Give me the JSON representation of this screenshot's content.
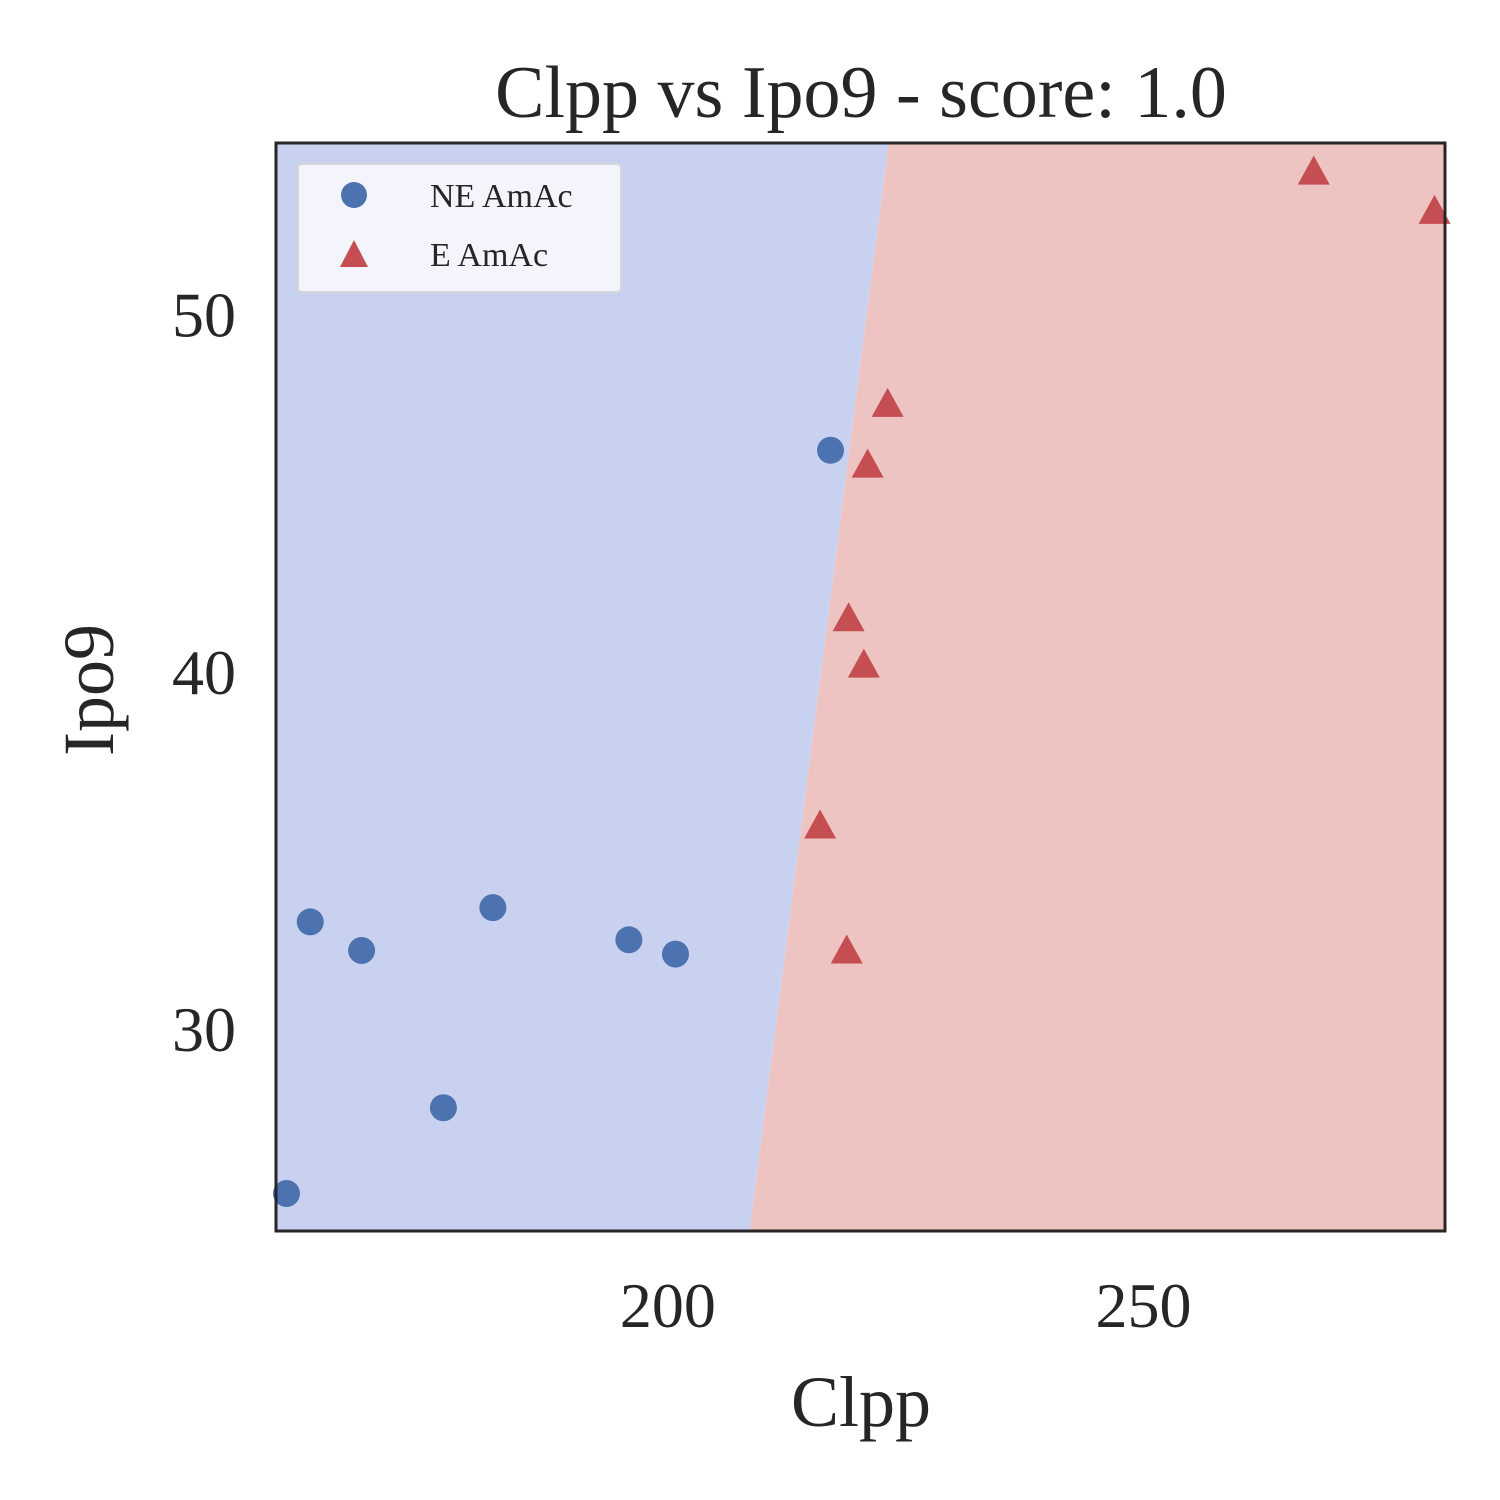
{
  "chart_data": {
    "type": "scatter",
    "title": "Clpp vs Ipo9 - score: 1.0",
    "xlabel": "Clpp",
    "ylabel": "Ipo9",
    "xlim": [
      158.8,
      281.7
    ],
    "ylim": [
      24.35,
      54.8
    ],
    "xticks": [
      200,
      250
    ],
    "yticks": [
      30,
      40,
      50
    ],
    "grid": false,
    "legend_position": "upper-left",
    "decision_boundary": {
      "points": [
        [
          208.6,
          24.35
        ],
        [
          223.2,
          54.8
        ]
      ],
      "left_region_class": "NE AmAc",
      "right_region_class": "E AmAc",
      "left_color": "#c9d1f1",
      "right_color": "#eec4c3"
    },
    "series": [
      {
        "name": "NE AmAc",
        "marker": "circle",
        "color": "#4c72b0",
        "points": [
          [
            159.9,
            25.4
          ],
          [
            162.4,
            33.0
          ],
          [
            167.8,
            32.2
          ],
          [
            176.4,
            27.8
          ],
          [
            181.6,
            33.4
          ],
          [
            195.9,
            32.5
          ],
          [
            200.8,
            32.1
          ],
          [
            217.1,
            46.2
          ]
        ]
      },
      {
        "name": "E AmAc",
        "marker": "triangle",
        "color": "#c44e52",
        "points": [
          [
            216.0,
            35.7
          ],
          [
            218.8,
            32.2
          ],
          [
            219.0,
            41.5
          ],
          [
            220.6,
            40.2
          ],
          [
            221.0,
            45.8
          ],
          [
            223.1,
            47.5
          ],
          [
            267.9,
            54.0
          ],
          [
            280.6,
            52.9
          ]
        ]
      }
    ]
  }
}
